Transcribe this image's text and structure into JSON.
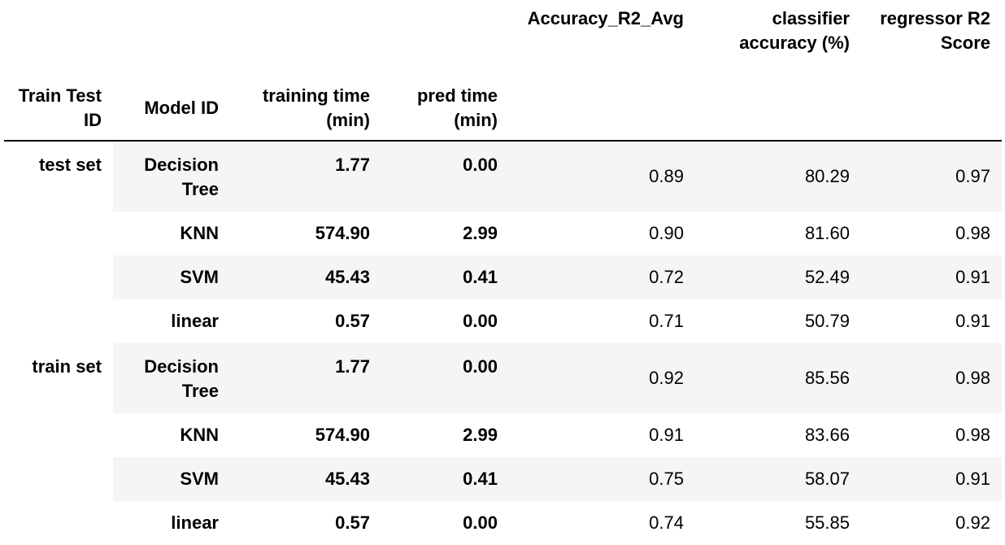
{
  "table": {
    "columns_top": [
      "",
      "",
      "",
      "",
      "Accuracy_R2_Avg",
      "classifier accuracy (%)",
      "regressor R2 Score"
    ],
    "index_headers": [
      "Train Test ID",
      "Model ID",
      "training time (min)",
      "pred time (min)"
    ],
    "groups": [
      {
        "label": "test set",
        "rows": [
          {
            "model": "Decision Tree",
            "training_time": "1.77",
            "pred_time": "0.00",
            "acc_r2_avg": "0.89",
            "classifier_acc": "80.29",
            "regressor_r2": "0.97"
          },
          {
            "model": "KNN",
            "training_time": "574.90",
            "pred_time": "2.99",
            "acc_r2_avg": "0.90",
            "classifier_acc": "81.60",
            "regressor_r2": "0.98"
          },
          {
            "model": "SVM",
            "training_time": "45.43",
            "pred_time": "0.41",
            "acc_r2_avg": "0.72",
            "classifier_acc": "52.49",
            "regressor_r2": "0.91"
          },
          {
            "model": "linear",
            "training_time": "0.57",
            "pred_time": "0.00",
            "acc_r2_avg": "0.71",
            "classifier_acc": "50.79",
            "regressor_r2": "0.91"
          }
        ]
      },
      {
        "label": "train set",
        "rows": [
          {
            "model": "Decision Tree",
            "training_time": "1.77",
            "pred_time": "0.00",
            "acc_r2_avg": "0.92",
            "classifier_acc": "85.56",
            "regressor_r2": "0.98"
          },
          {
            "model": "KNN",
            "training_time": "574.90",
            "pred_time": "2.99",
            "acc_r2_avg": "0.91",
            "classifier_acc": "83.66",
            "regressor_r2": "0.98"
          },
          {
            "model": "SVM",
            "training_time": "45.43",
            "pred_time": "0.41",
            "acc_r2_avg": "0.75",
            "classifier_acc": "58.07",
            "regressor_r2": "0.91"
          },
          {
            "model": "linear",
            "training_time": "0.57",
            "pred_time": "0.00",
            "acc_r2_avg": "0.74",
            "classifier_acc": "55.85",
            "regressor_r2": "0.92"
          }
        ]
      }
    ]
  }
}
